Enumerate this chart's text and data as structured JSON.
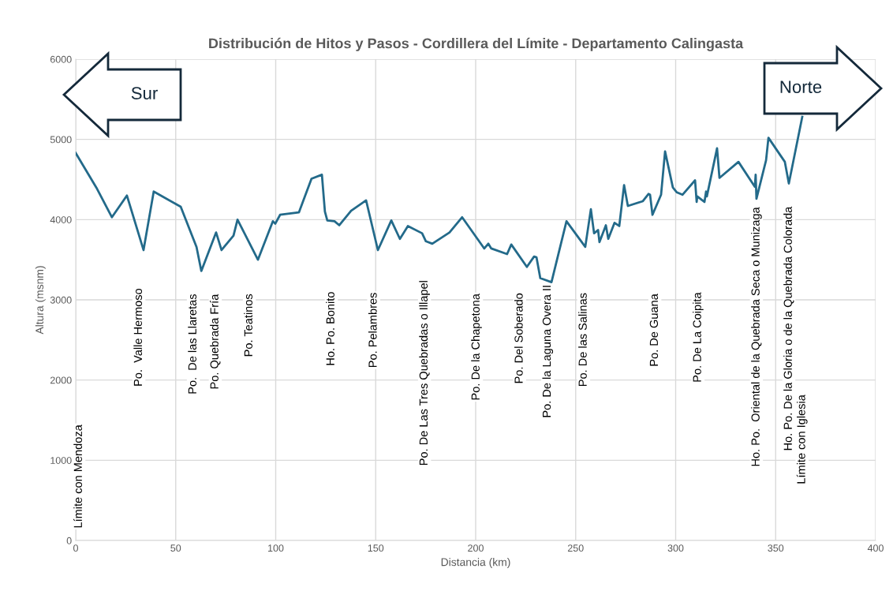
{
  "chart_data": {
    "type": "line",
    "title": "Distribución de Hitos y Pasos - Cordillera del Límite - Departamento Calingasta",
    "xlabel": "Distancia (km)",
    "ylabel": "Altura (msnm)",
    "xlim": [
      0,
      400
    ],
    "xticks": [
      0,
      50,
      100,
      150,
      200,
      250,
      300,
      350,
      400
    ],
    "ylim": [
      0,
      6000
    ],
    "yticks": [
      0,
      1000,
      2000,
      3000,
      4000,
      5000,
      6000
    ],
    "grid": true,
    "marker": "none",
    "line_style": "solid",
    "x": [
      0,
      10.3,
      18.1,
      25.6,
      33.9,
      39,
      52.5,
      60.4,
      62.8,
      70.2,
      72.9,
      78.9,
      80.9,
      91.1,
      98.6,
      99.8,
      102.2,
      111.6,
      117.9,
      123.1,
      124.6,
      125.8,
      129.4,
      131.8,
      137.7,
      145.2,
      151.1,
      157.8,
      162.1,
      166.1,
      173.2,
      175.1,
      178.3,
      186.9,
      193.2,
      204.3,
      206.3,
      207.8,
      215.7,
      217.8,
      225.6,
      229.2,
      230.4,
      232.3,
      237.9,
      245.4,
      254.8,
      257.6,
      259.2,
      261.2,
      261.9,
      265.1,
      266.3,
      269.4,
      271.8,
      274.2,
      276.1,
      283.6,
      286.4,
      287.2,
      288.4,
      292.7,
      294.7,
      298.6,
      300.6,
      303.4,
      309.7,
      310.5,
      310.8,
      314.4,
      315.2,
      315.6,
      320.7,
      321.9,
      331.4,
      339.6,
      340,
      340.4,
      345.2,
      346.4,
      354.6,
      356.6,
      363.3
    ],
    "series": [
      {
        "color": "#236a8a",
        "values": [
          4830,
          4400,
          4030,
          4300,
          3620,
          4350,
          4160,
          3660,
          3360,
          3840,
          3620,
          3800,
          4000,
          3500,
          3980,
          3950,
          4060,
          4090,
          4510,
          4560,
          4100,
          3990,
          3980,
          3930,
          4110,
          4240,
          3620,
          3990,
          3760,
          3920,
          3830,
          3730,
          3700,
          3840,
          4030,
          3640,
          3700,
          3640,
          3570,
          3690,
          3410,
          3540,
          3530,
          3270,
          3220,
          3980,
          3660,
          4130,
          3830,
          3870,
          3720,
          3930,
          3760,
          3960,
          3920,
          4430,
          4170,
          4230,
          4320,
          4310,
          4060,
          4310,
          4850,
          4400,
          4340,
          4310,
          4490,
          4220,
          4290,
          4220,
          4350,
          4290,
          4890,
          4520,
          4720,
          4410,
          4560,
          4260,
          4740,
          5020,
          4720,
          4450,
          5280
        ]
      }
    ],
    "annotations": [
      "Sur",
      "Norte",
      "Límite con Mendoza",
      "Po.  Valle Hermoso",
      "Po.  De las Llaretas",
      "Po. Quebrada Fría",
      "Po. Teatinos",
      "Ho. Po. Bonito",
      "Po. Pelambres",
      "Po. De Las Tres Quebradas o Illapel",
      "Po. De la Chapetona",
      "Po. Del Soberado",
      "Po. De la Laguna Overa II",
      "Po. De las Salinas",
      "Po. De Guana",
      "Po. De La Coipita",
      "Ho. Po.  Oriental de la Quebrada Seca o Munizaga",
      "Ho. Po. De la Gloria o de la Quebrada Colorada",
      "Límite con Iglesia"
    ]
  }
}
